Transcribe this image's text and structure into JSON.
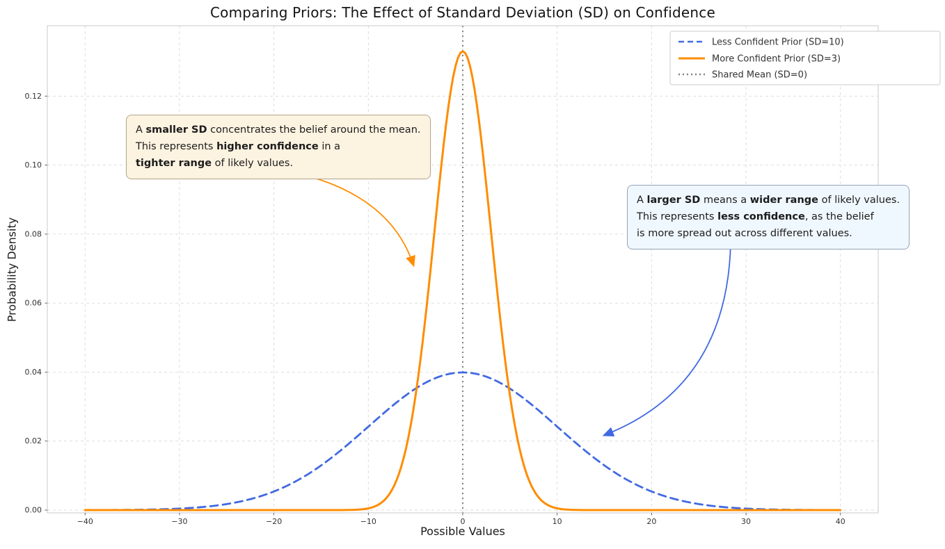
{
  "title": "Comparing Priors: The Effect of Standard Deviation (SD) on Confidence",
  "chart_data": {
    "type": "line",
    "title": "Comparing Priors: The Effect of Standard Deviation (SD) on Confidence",
    "xlabel": "Possible Values",
    "ylabel": "Probability Density",
    "xlim": [
      -44,
      44
    ],
    "ylim": [
      -0.0008,
      0.1404
    ],
    "grid": true,
    "legend_position": "upper right",
    "xticks": [
      -40,
      -30,
      -20,
      -10,
      0,
      10,
      20,
      30,
      40
    ],
    "xtick_labels": [
      "−40",
      "−30",
      "−20",
      "−10",
      "0",
      "10",
      "20",
      "30",
      "40"
    ],
    "yticks": [
      0.0,
      0.02,
      0.04,
      0.06,
      0.08,
      0.1,
      0.12
    ],
    "ytick_labels": [
      "0.00",
      "0.02",
      "0.04",
      "0.06",
      "0.08",
      "0.10",
      "0.12"
    ],
    "x_range_of_curves": [
      -40,
      40
    ],
    "series": [
      {
        "name": "Less Confident Prior (SD=10)",
        "distribution": "normal",
        "mean": 0,
        "sd": 10,
        "peak_density": 0.0399,
        "color": "#4169E1",
        "style": "dashed",
        "width": 2.8
      },
      {
        "name": "More Confident Prior (SD=3)",
        "distribution": "normal",
        "mean": 0,
        "sd": 3,
        "peak_density": 0.133,
        "color": "#FF8C00",
        "style": "solid",
        "width": 3
      }
    ],
    "vline": {
      "name": "Shared Mean (SD=0)",
      "x": 0,
      "color": "#7f7f7f",
      "style": "dotted",
      "width": 2
    }
  },
  "legend": {
    "items": [
      {
        "label": "Less Confident Prior (SD=10)",
        "color": "#4169E1",
        "dash": "dashed"
      },
      {
        "label": "More Confident Prior (SD=3)",
        "color": "#FF8C00",
        "dash": "solid"
      },
      {
        "label": "Shared Mean (SD=0)",
        "color": "#7f7f7f",
        "dash": "dotted"
      }
    ]
  },
  "annotations": [
    {
      "id": "smaller-sd-note",
      "box_color": "#FDF3E1",
      "border_color": "#b3a488",
      "arrow_color": "#FF8C00",
      "lines": [
        [
          {
            "t": "A "
          },
          {
            "t": "smaller SD",
            "b": true
          },
          {
            "t": " concentrates the belief around the mean."
          }
        ],
        [
          {
            "t": "This represents "
          },
          {
            "t": "higher confidence",
            "b": true
          },
          {
            "t": " in a"
          }
        ],
        [
          {
            "t": "tighter range",
            "b": true
          },
          {
            "t": " of likely values."
          }
        ]
      ]
    },
    {
      "id": "larger-sd-note",
      "box_color": "#F0F8FF",
      "border_color": "#93a3b8",
      "arrow_color": "#4169E1",
      "lines": [
        [
          {
            "t": "A "
          },
          {
            "t": "larger SD",
            "b": true
          },
          {
            "t": " means a "
          },
          {
            "t": "wider range",
            "b": true
          },
          {
            "t": " of likely values."
          }
        ],
        [
          {
            "t": "This represents "
          },
          {
            "t": "less confidence",
            "b": true
          },
          {
            "t": ", as the belief"
          }
        ],
        [
          {
            "t": "is more spread out across different values."
          }
        ]
      ]
    }
  ],
  "colors": {
    "grid": "#d9d9d9",
    "spine": "#c8c8c8",
    "tick_text": "#333333",
    "title_text": "#141414"
  }
}
